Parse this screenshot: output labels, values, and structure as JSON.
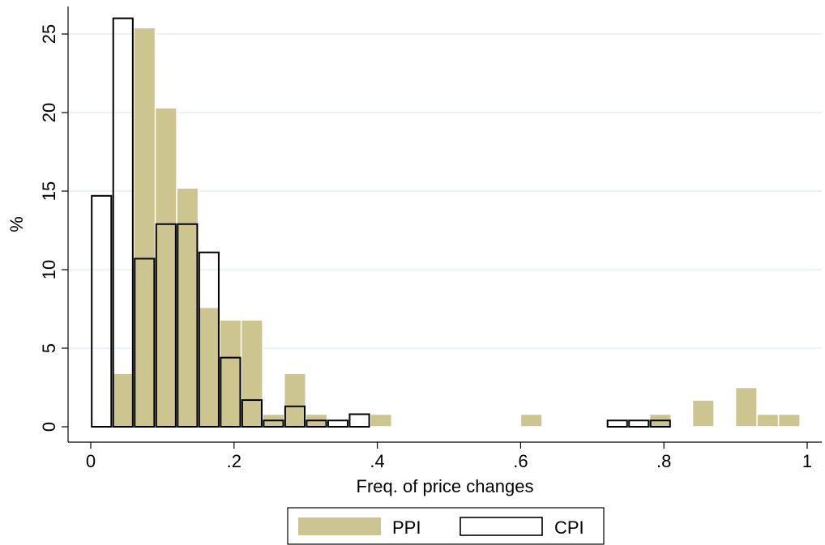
{
  "chart_data": {
    "type": "bar",
    "title": "",
    "xlabel": "Freq. of price changes",
    "ylabel": "%",
    "xlim": [
      -0.02,
      1.02
    ],
    "ylim": [
      -0.5,
      26.6
    ],
    "bin_width": 0.03,
    "xticks": [
      {
        "value": 0,
        "label": "0"
      },
      {
        "value": 0.2,
        "label": ".2"
      },
      {
        "value": 0.4,
        "label": ".4"
      },
      {
        "value": 0.6,
        "label": ".6"
      },
      {
        "value": 0.8,
        "label": ".8"
      },
      {
        "value": 1,
        "label": "1"
      }
    ],
    "yticks": [
      {
        "value": 0,
        "label": "0"
      },
      {
        "value": 5,
        "label": "5"
      },
      {
        "value": 10,
        "label": "10"
      },
      {
        "value": 15,
        "label": "15"
      },
      {
        "value": 20,
        "label": "20"
      },
      {
        "value": 25,
        "label": "25"
      }
    ],
    "grid": true,
    "legend_position": "bottom",
    "series": [
      {
        "name": "PPI",
        "color": "#cdc590",
        "style": "filled",
        "bins": [
          {
            "x": 0.03,
            "y": 3.4
          },
          {
            "x": 0.06,
            "y": 25.4
          },
          {
            "x": 0.09,
            "y": 20.3
          },
          {
            "x": 0.12,
            "y": 15.2
          },
          {
            "x": 0.15,
            "y": 7.6
          },
          {
            "x": 0.18,
            "y": 6.8
          },
          {
            "x": 0.21,
            "y": 6.8
          },
          {
            "x": 0.24,
            "y": 0.8
          },
          {
            "x": 0.27,
            "y": 3.4
          },
          {
            "x": 0.3,
            "y": 0.8
          },
          {
            "x": 0.39,
            "y": 0.8
          },
          {
            "x": 0.6,
            "y": 0.8
          },
          {
            "x": 0.78,
            "y": 0.8
          },
          {
            "x": 0.84,
            "y": 1.7
          },
          {
            "x": 0.9,
            "y": 2.5
          },
          {
            "x": 0.93,
            "y": 0.8
          },
          {
            "x": 0.96,
            "y": 0.8
          }
        ]
      },
      {
        "name": "CPI",
        "color": "#000000",
        "style": "outline",
        "bins": [
          {
            "x": 0.0,
            "y": 14.7
          },
          {
            "x": 0.03,
            "y": 26.0
          },
          {
            "x": 0.06,
            "y": 10.7
          },
          {
            "x": 0.09,
            "y": 12.9
          },
          {
            "x": 0.12,
            "y": 12.9
          },
          {
            "x": 0.15,
            "y": 11.1
          },
          {
            "x": 0.18,
            "y": 4.4
          },
          {
            "x": 0.21,
            "y": 1.7
          },
          {
            "x": 0.24,
            "y": 0.4
          },
          {
            "x": 0.27,
            "y": 1.3
          },
          {
            "x": 0.3,
            "y": 0.4
          },
          {
            "x": 0.33,
            "y": 0.4
          },
          {
            "x": 0.36,
            "y": 0.8
          },
          {
            "x": 0.72,
            "y": 0.4
          },
          {
            "x": 0.75,
            "y": 0.4
          },
          {
            "x": 0.78,
            "y": 0.4
          }
        ]
      }
    ]
  }
}
